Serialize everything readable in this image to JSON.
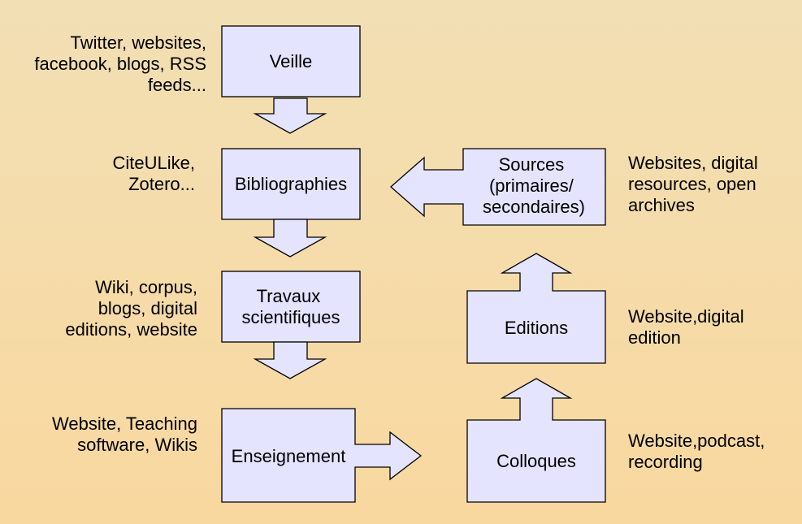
{
  "nodes": {
    "veille": "Veille",
    "bibliographies": "Bibliographies",
    "travaux": [
      "Travaux",
      "scientifiques"
    ],
    "enseignement": "Enseignement",
    "sources": [
      "Sources",
      "(primaires/",
      "secondaires)"
    ],
    "editions": "Editions",
    "colloques": "Colloques"
  },
  "notes": {
    "veille_tools": "Twitter, websites,\nfacebook, blogs, RSS\nfeeds...",
    "biblio_tools": "CiteULike,\nZotero...",
    "travaux_tools": "Wiki, corpus,\nblogs, digital\neditions, website",
    "enseignement_tools": "Website, Teaching\nsoftware, Wikis",
    "sources_tools": "Websites, digital\nresources, open\narchives",
    "editions_tools": "Website,digital\nedition",
    "colloques_tools": "Website,podcast,\nrecording"
  },
  "colors": {
    "box_fill": "#e4e4ff",
    "background": "#f5dcab"
  }
}
